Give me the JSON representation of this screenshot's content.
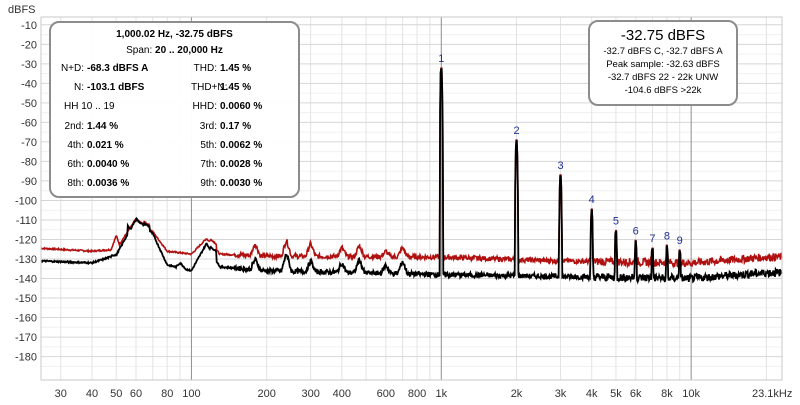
{
  "chart_data": {
    "type": "line",
    "ylabel": "dBFS",
    "xunit_label": "23.1kHz",
    "x_scale": "log",
    "xlim": [
      25,
      23100
    ],
    "ylim": [
      -192,
      -6
    ],
    "grid": true,
    "yticks": [
      -10,
      -20,
      -30,
      -40,
      -50,
      -60,
      -70,
      -80,
      -90,
      -100,
      -110,
      -120,
      -130,
      -140,
      -150,
      -160,
      -170,
      -180
    ],
    "xticks": [
      {
        "v": 30,
        "label": "30"
      },
      {
        "v": 40,
        "label": "40"
      },
      {
        "v": 50,
        "label": "50"
      },
      {
        "v": 60,
        "label": "60"
      },
      {
        "v": 80,
        "label": "80"
      },
      {
        "v": 100,
        "label": "100"
      },
      {
        "v": 200,
        "label": "200"
      },
      {
        "v": 300,
        "label": "300"
      },
      {
        "v": 400,
        "label": "400"
      },
      {
        "v": 600,
        "label": "600"
      },
      {
        "v": 800,
        "label": "800"
      },
      {
        "v": 1000,
        "label": "1k"
      },
      {
        "v": 2000,
        "label": "2k"
      },
      {
        "v": 3000,
        "label": "3k"
      },
      {
        "v": 4000,
        "label": "4k"
      },
      {
        "v": 5000,
        "label": "5k"
      },
      {
        "v": 6000,
        "label": "6k"
      },
      {
        "v": 8000,
        "label": "8k"
      },
      {
        "v": 10000,
        "label": "10k"
      }
    ],
    "harmonics": [
      {
        "label": "1",
        "freq": 1000,
        "level": -32.75
      },
      {
        "label": "2",
        "freq": 2000,
        "level": -69.5
      },
      {
        "label": "3",
        "freq": 3000,
        "level": -87.5
      },
      {
        "label": "4",
        "freq": 4000,
        "level": -105
      },
      {
        "label": "5",
        "freq": 5000,
        "level": -116
      },
      {
        "label": "6",
        "freq": 6000,
        "level": -121
      },
      {
        "label": "7",
        "freq": 7000,
        "level": -125
      },
      {
        "label": "8",
        "freq": 8000,
        "level": -123.5
      },
      {
        "label": "9",
        "freq": 9000,
        "level": -126
      }
    ],
    "series": [
      {
        "color": "#b01010",
        "floor": [
          [
            25,
            -124.5
          ],
          [
            40,
            -126
          ],
          [
            50,
            -125
          ],
          [
            60,
            -109.5
          ],
          [
            70,
            -116
          ],
          [
            80,
            -126
          ],
          [
            100,
            -127.5
          ],
          [
            115,
            -119.5
          ],
          [
            130,
            -127.5
          ],
          [
            200,
            -128.5
          ],
          [
            1000,
            -129
          ],
          [
            3000,
            -131
          ],
          [
            10000,
            -132
          ],
          [
            20000,
            -129
          ],
          [
            23100,
            -129
          ]
        ],
        "bumps": [
          [
            50,
            -118
          ],
          [
            65,
            -111
          ],
          [
            120,
            -120
          ],
          [
            180,
            -122
          ],
          [
            240,
            -120
          ],
          [
            300,
            -122
          ],
          [
            400,
            -124
          ],
          [
            470,
            -123
          ],
          [
            600,
            -126
          ],
          [
            700,
            -124
          ]
        ]
      },
      {
        "color": "#000000",
        "floor": [
          [
            25,
            -131
          ],
          [
            40,
            -132
          ],
          [
            50,
            -128
          ],
          [
            60,
            -109.5
          ],
          [
            70,
            -117
          ],
          [
            80,
            -133
          ],
          [
            100,
            -136
          ],
          [
            115,
            -122
          ],
          [
            130,
            -134
          ],
          [
            200,
            -136
          ],
          [
            1000,
            -138
          ],
          [
            3000,
            -139
          ],
          [
            10000,
            -140
          ],
          [
            20000,
            -137
          ],
          [
            23100,
            -137
          ]
        ],
        "bumps": [
          [
            50,
            -128
          ],
          [
            58,
            -116
          ],
          [
            65,
            -112
          ],
          [
            90,
            -132
          ],
          [
            120,
            -124
          ],
          [
            180,
            -130
          ],
          [
            240,
            -127
          ],
          [
            300,
            -131
          ],
          [
            400,
            -132
          ],
          [
            470,
            -130
          ],
          [
            600,
            -133
          ],
          [
            700,
            -131
          ]
        ]
      }
    ]
  },
  "stats_panel": {
    "header": "1,000.02 Hz, -32.75 dBFS",
    "span_label": "Span:",
    "span_value": "20 .. 20,000 Hz",
    "rows": [
      [
        {
          "k": "N+D:",
          "v": "-68.3 dBFS A"
        },
        {
          "k": "THD:",
          "v": "1.45 %"
        }
      ],
      [
        {
          "k": "N:",
          "v": "-103.1 dBFS"
        },
        {
          "k": "THD+N:",
          "v": "1.45 %"
        }
      ],
      [
        {
          "k": "HH 10 .. 19",
          "v": ""
        },
        {
          "k": "HHD:",
          "v": "0.0060 %"
        }
      ],
      [
        {
          "k": "2nd:",
          "v": "1.44 %"
        },
        {
          "k": "3rd:",
          "v": "0.17 %"
        }
      ],
      [
        {
          "k": "4th:",
          "v": "0.021 %"
        },
        {
          "k": "5th:",
          "v": "0.0062 %"
        }
      ],
      [
        {
          "k": "6th:",
          "v": "0.0040 %"
        },
        {
          "k": "7th:",
          "v": "0.0028 %"
        }
      ],
      [
        {
          "k": "8th:",
          "v": "0.0036 %"
        },
        {
          "k": "9th:",
          "v": "0.0030 %"
        }
      ]
    ]
  },
  "level_panel": {
    "main": "-32.75 dBFS",
    "line1": "-32.7 dBFS C, -32.7 dBFS A",
    "line2": "Peak sample: -32.63 dBFS",
    "line3": "-32.7 dBFS 22 - 22k UNW",
    "line4": "-104.6 dBFS >22k"
  }
}
